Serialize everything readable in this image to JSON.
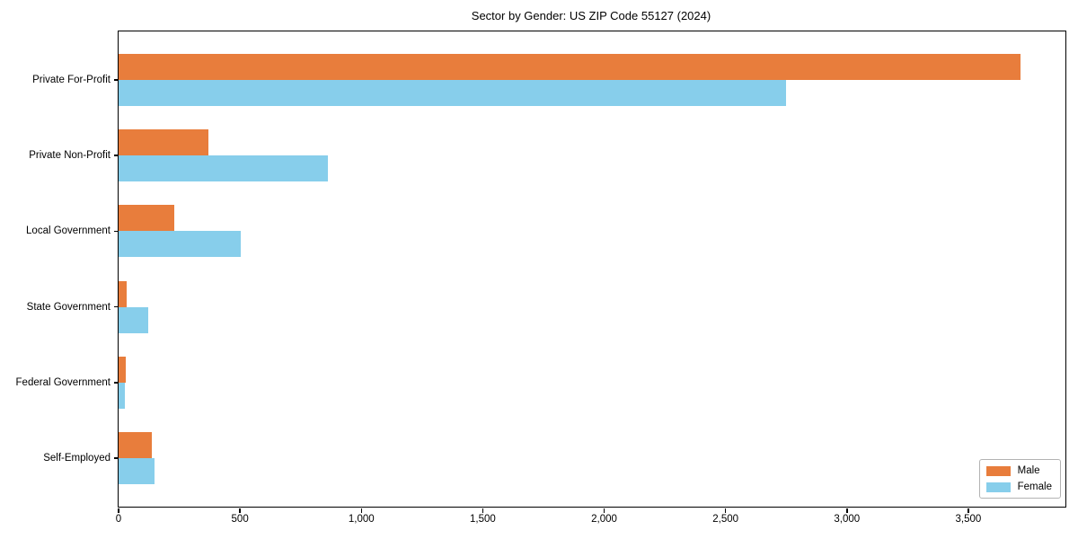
{
  "title": "Sector by Gender: US ZIP Code 55127 (2024)",
  "chart_data": {
    "type": "bar",
    "orientation": "horizontal",
    "title": "Sector by Gender: US ZIP Code 55127 (2024)",
    "categories": [
      "Private For-Profit",
      "Private Non-Profit",
      "Local Government",
      "State Government",
      "Federal Government",
      "Self-Employed"
    ],
    "series": [
      {
        "name": "Male",
        "color": "#e87d3c",
        "values": [
          3715,
          370,
          230,
          33,
          28,
          137
        ]
      },
      {
        "name": "Female",
        "color": "#87ceeb",
        "values": [
          2750,
          862,
          505,
          122,
          25,
          148
        ]
      }
    ],
    "xlabel": "",
    "ylabel": "",
    "xlim": [
      0,
      3900
    ],
    "xticks": [
      0,
      500,
      1000,
      1500,
      2000,
      2500,
      3000,
      3500
    ],
    "xtick_labels": [
      "0",
      "500",
      "1,000",
      "1,500",
      "2,000",
      "2,500",
      "3,000",
      "3,500"
    ],
    "grid": false,
    "legend": {
      "position": "lower right",
      "labels": [
        "Male",
        "Female"
      ]
    }
  }
}
